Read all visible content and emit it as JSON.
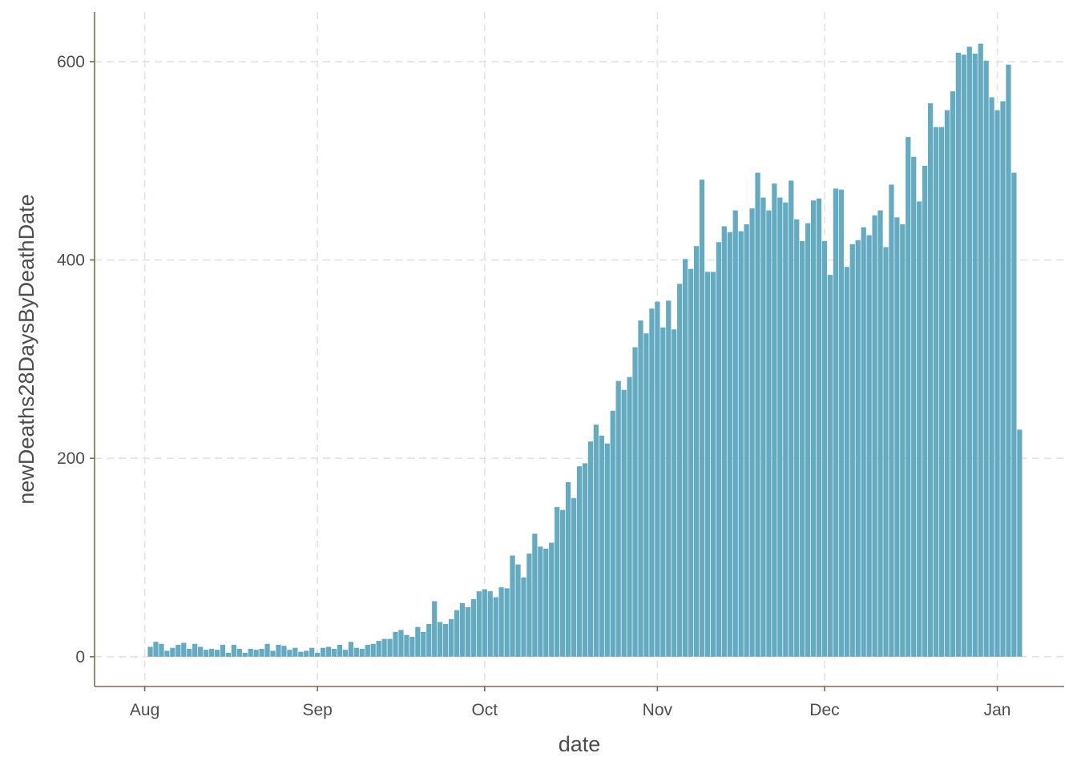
{
  "chart_data": {
    "type": "bar",
    "title": "",
    "xlabel": "date",
    "ylabel": "newDeaths28DaysByDeathDate",
    "start_date": "2020-08-02",
    "x_ticks": [
      {
        "label": "Aug",
        "date": "2020-08-01"
      },
      {
        "label": "Sep",
        "date": "2020-09-01"
      },
      {
        "label": "Oct",
        "date": "2020-10-01"
      },
      {
        "label": "Nov",
        "date": "2020-11-01"
      },
      {
        "label": "Dec",
        "date": "2020-12-01"
      },
      {
        "label": "Jan",
        "date": "2021-01-01"
      }
    ],
    "y_ticks": [
      0,
      200,
      400,
      600
    ],
    "ylim": [
      -30,
      650
    ],
    "xlim": [
      "2020-07-23",
      "2021-01-13"
    ],
    "grid": true,
    "bar_color": "#64abc2",
    "values": [
      10,
      15,
      13,
      6,
      9,
      12,
      14,
      8,
      13,
      10,
      7,
      8,
      7,
      12,
      4,
      12,
      8,
      4,
      8,
      7,
      8,
      13,
      6,
      12,
      11,
      7,
      9,
      5,
      6,
      9,
      4,
      9,
      10,
      8,
      12,
      7,
      15,
      9,
      8,
      12,
      13,
      16,
      18,
      18,
      25,
      27,
      22,
      20,
      30,
      25,
      33,
      56,
      35,
      33,
      38,
      47,
      54,
      50,
      58,
      66,
      68,
      66,
      60,
      70,
      69,
      102,
      93,
      80,
      104,
      124,
      111,
      109,
      115,
      151,
      148,
      176,
      160,
      192,
      195,
      217,
      234,
      223,
      215,
      248,
      278,
      269,
      282,
      312,
      339,
      326,
      351,
      358,
      332,
      359,
      330,
      376,
      401,
      391,
      414,
      481,
      388,
      388,
      418,
      434,
      428,
      450,
      429,
      436,
      452,
      488,
      463,
      450,
      477,
      463,
      458,
      480,
      441,
      419,
      437,
      460,
      462,
      419,
      385,
      472,
      471,
      393,
      416,
      420,
      433,
      425,
      445,
      450,
      413,
      476,
      443,
      436,
      524,
      504,
      459,
      495,
      558,
      534,
      534,
      551,
      570,
      609,
      607,
      615,
      608,
      618,
      601,
      564,
      551,
      560,
      597,
      488,
      229
    ]
  }
}
